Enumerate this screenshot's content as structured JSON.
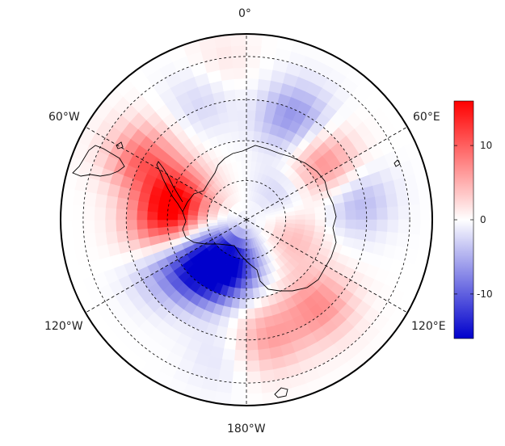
{
  "map": {
    "projection": "south-polar-stereographic",
    "longitude_labels": {
      "top": "0°",
      "upper_left": "60°W",
      "upper_right": "60°E",
      "lower_left": "120°W",
      "lower_right": "120°E",
      "bottom": "180°W"
    },
    "colors": {
      "negative": "#0000cc",
      "zero": "#ffffff",
      "positive": "#ff0000",
      "coastline": "#000000",
      "graticule": "#000000"
    },
    "anomaly_features": [
      {
        "lon": -75,
        "lat": -72,
        "value": 14
      },
      {
        "lon": -60,
        "lat": -60,
        "value": 9
      },
      {
        "lon": -95,
        "lat": -67,
        "value": 8
      },
      {
        "lon": -140,
        "lat": -74,
        "value": -15
      },
      {
        "lon": -160,
        "lat": -78,
        "value": -11
      },
      {
        "lon": -120,
        "lat": -66,
        "value": -6
      },
      {
        "lon": 25,
        "lat": -62,
        "value": -7
      },
      {
        "lon": 55,
        "lat": -66,
        "value": 8
      },
      {
        "lon": 80,
        "lat": -62,
        "value": -5
      },
      {
        "lon": 140,
        "lat": -62,
        "value": 7
      },
      {
        "lon": 170,
        "lat": -60,
        "value": 6
      },
      {
        "lon": 110,
        "lat": -78,
        "value": 5
      },
      {
        "lon": 60,
        "lat": -80,
        "value": -4
      },
      {
        "lon": -20,
        "lat": -58,
        "value": -3
      },
      {
        "lon": -10,
        "lat": -52,
        "value": 2
      },
      {
        "lon": -170,
        "lat": -56,
        "value": -2
      },
      {
        "lon": 0,
        "lat": -88,
        "value": 1
      }
    ]
  },
  "colorbar": {
    "min": -16,
    "max": 16,
    "ticks": [
      {
        "value": 10,
        "label": "10"
      },
      {
        "value": 0,
        "label": "0"
      },
      {
        "value": -10,
        "label": "-10"
      }
    ]
  }
}
